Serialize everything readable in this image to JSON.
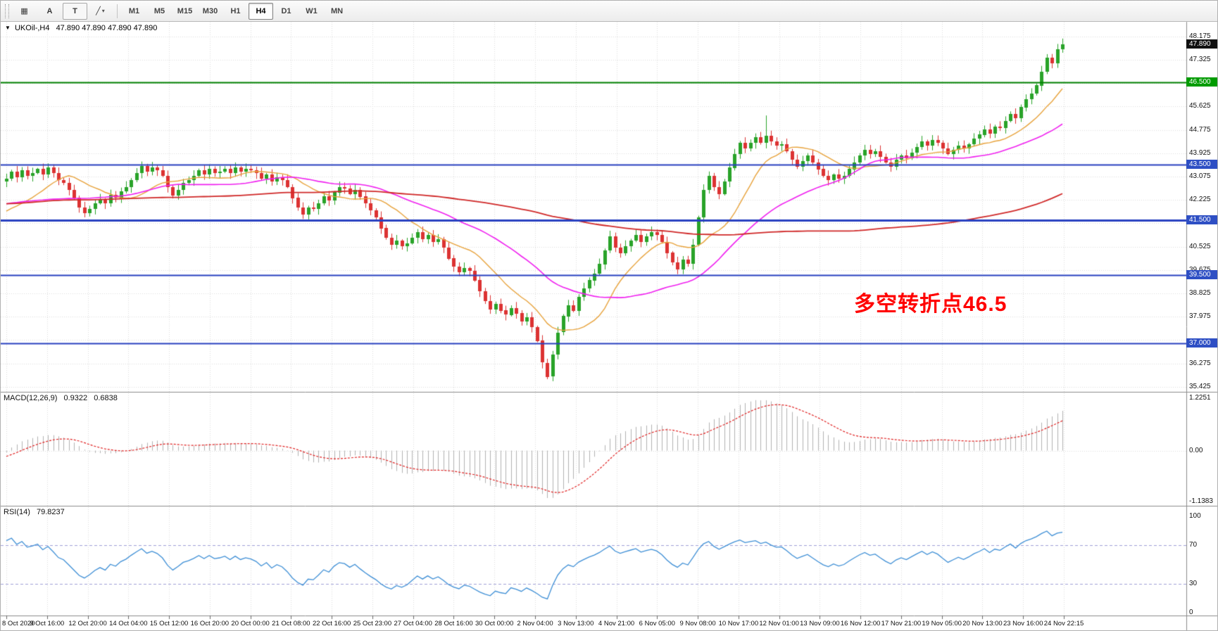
{
  "toolbar": {
    "tools": [
      {
        "name": "chart-grid-tool",
        "glyph": "▦"
      },
      {
        "name": "text-label-tool",
        "glyph": "A"
      },
      {
        "name": "text-tool",
        "glyph": "T",
        "boxed": true
      },
      {
        "name": "line-studies-tool",
        "glyph": "╱",
        "caret": "▾"
      }
    ],
    "timeframes": [
      {
        "label": "M1",
        "active": false
      },
      {
        "label": "M5",
        "active": false
      },
      {
        "label": "M15",
        "active": false
      },
      {
        "label": "M30",
        "active": false
      },
      {
        "label": "H1",
        "active": false
      },
      {
        "label": "H4",
        "active": true
      },
      {
        "label": "D1",
        "active": false
      },
      {
        "label": "W1",
        "active": false
      },
      {
        "label": "MN",
        "active": false
      }
    ]
  },
  "chart": {
    "marker": "▼",
    "title": "UKOil-,H4",
    "ohlc": "47.890 47.890 47.890 47.890",
    "annotation": {
      "text": "多空转折点46.5",
      "color": "#ff0000"
    },
    "colors": {
      "up": "#29a329",
      "down": "#dc3232",
      "ma_fast": "#e8a33c",
      "ma_mid": "#f020f0",
      "ma_slow": "#d02828",
      "grid": "#dcdcdc",
      "separator": "#8c8c8c",
      "macd_hist": "#b2b2b2",
      "macd_signal": "#e02020",
      "rsi": "#3e8fd6",
      "rsi_level": "#a0a0d8"
    },
    "levels": [
      {
        "v": 46.5,
        "color": "#008000",
        "w": 2
      },
      {
        "v": 43.5,
        "color": "#2840c0",
        "w": 2
      },
      {
        "v": 41.5,
        "color": "#2840c0",
        "w": 3
      },
      {
        "v": 39.5,
        "color": "#2840c0",
        "w": 2
      },
      {
        "v": 37.0,
        "color": "#2840c0",
        "w": 2
      }
    ],
    "price_axis": {
      "ticks": [
        {
          "v": 48.175,
          "label": "48.175"
        },
        {
          "v": 47.325,
          "label": "47.325"
        },
        {
          "v": 45.625,
          "label": "45.625"
        },
        {
          "v": 44.775,
          "label": "44.775"
        },
        {
          "v": 43.925,
          "label": "43.925"
        },
        {
          "v": 43.075,
          "label": "43.075"
        },
        {
          "v": 42.225,
          "label": "42.225"
        },
        {
          "v": 40.525,
          "label": "40.525"
        },
        {
          "v": 39.675,
          "label": "39.675"
        },
        {
          "v": 38.825,
          "label": "38.825"
        },
        {
          "v": 37.975,
          "label": "37.975"
        },
        {
          "v": 36.275,
          "label": "36.275"
        },
        {
          "v": 35.425,
          "label": "35.425"
        }
      ],
      "badges": [
        {
          "v": 47.89,
          "label": "47.890",
          "bg": "#101010"
        },
        {
          "v": 46.5,
          "label": "46.500",
          "bg": "#009b00"
        },
        {
          "v": 43.5,
          "label": "43.500",
          "bg": "#2e4fc4"
        },
        {
          "v": 41.5,
          "label": "41.500",
          "bg": "#2e4fc4"
        },
        {
          "v": 39.5,
          "label": "39.500",
          "bg": "#2e4fc4"
        },
        {
          "v": 37.0,
          "label": "37.000",
          "bg": "#2e4fc4"
        }
      ]
    }
  },
  "macd": {
    "label": "MACD(12,26,9)",
    "value_main": "0.9322",
    "value_signal": "0.6838",
    "axis": {
      "max_label": "1.2251",
      "zero_label": "0.00",
      "min_label": "-1.1383",
      "vmax": 1.3326,
      "vmin": -1.25
    },
    "params": {
      "fast": 12,
      "slow": 26,
      "signal": 9
    }
  },
  "rsi": {
    "label": "RSI(14)",
    "value": "79.8237",
    "period": 14,
    "axis_labels": [
      {
        "v": 100,
        "label": "100"
      },
      {
        "v": 70,
        "label": "70"
      },
      {
        "v": 30,
        "label": "30"
      },
      {
        "v": 0,
        "label": "0"
      }
    ],
    "levels": [
      70,
      30
    ]
  },
  "chart_data": {
    "type": "candlestick",
    "symbol": "UKOil-",
    "timeframe": "H4",
    "current_price": 47.89,
    "y_range": [
      35.24,
      48.71
    ],
    "x_labels": [
      "8 Oct 2020",
      "9 Oct 16:00",
      "12 Oct 20:00",
      "14 Oct 04:00",
      "15 Oct 12:00",
      "16 Oct 20:00",
      "20 Oct 00:00",
      "21 Oct 08:00",
      "22 Oct 16:00",
      "25 Oct 23:00",
      "27 Oct 04:00",
      "28 Oct 16:00",
      "30 Oct 00:00",
      "2 Nov 04:00",
      "3 Nov 13:00",
      "4 Nov 21:00",
      "6 Nov 05:00",
      "9 Nov 08:00",
      "10 Nov 17:00",
      "12 Nov 01:00",
      "13 Nov 09:00",
      "16 Nov 12:00",
      "17 Nov 21:00",
      "19 Nov 05:00",
      "20 Nov 13:00",
      "23 Nov 16:00",
      "24 Nov 22:15"
    ],
    "first_open": 42.9,
    "closes": [
      43.0,
      43.25,
      43.05,
      43.3,
      43.1,
      43.2,
      43.35,
      43.15,
      43.4,
      43.2,
      42.95,
      42.85,
      42.6,
      42.3,
      41.95,
      41.75,
      41.9,
      42.1,
      42.25,
      42.1,
      42.4,
      42.3,
      42.55,
      42.7,
      42.95,
      43.2,
      43.45,
      43.25,
      43.4,
      43.3,
      43.1,
      42.7,
      42.4,
      42.6,
      42.85,
      42.95,
      43.1,
      43.3,
      43.15,
      43.35,
      43.2,
      43.25,
      43.35,
      43.2,
      43.4,
      43.25,
      43.35,
      43.3,
      43.2,
      43.0,
      43.15,
      42.9,
      43.05,
      42.95,
      42.7,
      42.3,
      41.95,
      41.7,
      41.95,
      41.9,
      42.1,
      42.35,
      42.2,
      42.5,
      42.7,
      42.65,
      42.45,
      42.6,
      42.35,
      42.1,
      41.85,
      41.6,
      41.2,
      40.85,
      40.6,
      40.75,
      40.55,
      40.65,
      40.85,
      41.05,
      40.8,
      40.95,
      40.7,
      40.8,
      40.5,
      40.1,
      39.8,
      39.6,
      39.75,
      39.65,
      39.3,
      38.9,
      38.55,
      38.25,
      38.45,
      38.2,
      38.05,
      38.3,
      38.1,
      37.8,
      37.95,
      37.6,
      37.1,
      36.3,
      35.8,
      36.6,
      37.4,
      38.0,
      38.4,
      38.2,
      38.7,
      39.0,
      39.3,
      39.55,
      39.9,
      40.4,
      40.9,
      40.5,
      40.3,
      40.55,
      40.75,
      40.95,
      40.7,
      40.9,
      41.05,
      40.95,
      40.7,
      40.3,
      39.95,
      39.7,
      40.05,
      39.9,
      40.6,
      41.6,
      42.6,
      43.1,
      42.7,
      42.45,
      42.9,
      43.4,
      43.9,
      44.3,
      44.1,
      44.3,
      44.5,
      44.3,
      44.55,
      44.35,
      44.2,
      44.25,
      44.0,
      43.7,
      43.45,
      43.65,
      43.85,
      43.6,
      43.35,
      43.1,
      42.95,
      43.15,
      43.0,
      43.1,
      43.35,
      43.6,
      43.85,
      44.05,
      43.9,
      44.0,
      43.8,
      43.6,
      43.45,
      43.7,
      43.85,
      43.75,
      43.95,
      44.15,
      44.35,
      44.2,
      44.4,
      44.3,
      44.1,
      43.9,
      44.05,
      44.2,
      44.1,
      44.25,
      44.45,
      44.6,
      44.8,
      44.65,
      44.9,
      44.85,
      45.1,
      45.35,
      45.2,
      45.6,
      45.9,
      46.1,
      46.4,
      46.9,
      47.4,
      47.2,
      47.7,
      47.89
    ],
    "wick_overrides": {
      "104": {
        "low": 35.7
      },
      "146": {
        "high": 45.3
      },
      "203": {
        "high": 48.1
      }
    },
    "moving_averages": [
      {
        "period": 13,
        "color_key": "ma_fast",
        "width": 1.4
      },
      {
        "period": 34,
        "color_key": "ma_mid",
        "width": 1.6
      },
      {
        "period": 110,
        "color_key": "ma_slow",
        "width": 1.8
      }
    ],
    "horizontal_levels": [
      46.5,
      43.5,
      41.5,
      39.5,
      37.0
    ],
    "indicators": [
      {
        "name": "MACD",
        "params": [
          12,
          26,
          9
        ],
        "current": [
          0.9322,
          0.6838
        ],
        "range": [
          -1.1383,
          1.2251
        ]
      },
      {
        "name": "RSI",
        "params": [
          14
        ],
        "current": 79.8237,
        "range": [
          0,
          100
        ]
      }
    ]
  }
}
